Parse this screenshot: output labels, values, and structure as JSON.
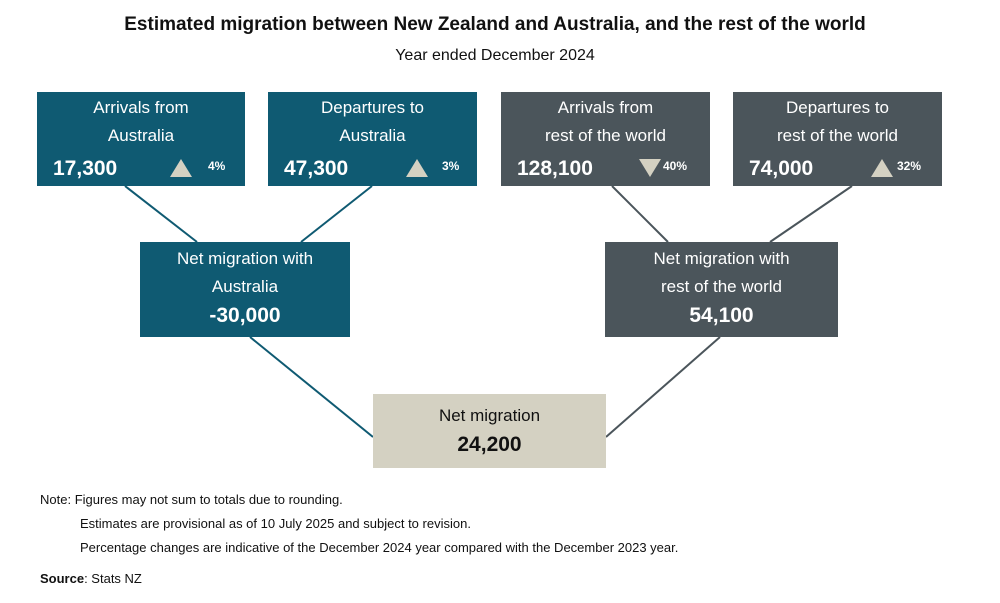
{
  "title": "Estimated migration between New Zealand and Australia, and the rest of the world",
  "subtitle": "Year ended December 2024",
  "boxes": {
    "arr_aus": {
      "line1": "Arrivals from",
      "line2": "Australia",
      "value": "17,300",
      "change": "4%",
      "direction": "up"
    },
    "dep_aus": {
      "line1": "Departures to",
      "line2": "Australia",
      "value": "47,300",
      "change": "3%",
      "direction": "up"
    },
    "arr_row": {
      "line1": "Arrivals from",
      "line2": "rest of the world",
      "value": "128,100",
      "change": "40%",
      "direction": "down"
    },
    "dep_row": {
      "line1": "Departures to",
      "line2": "rest of the world",
      "value": "74,000",
      "change": "32%",
      "direction": "up"
    },
    "net_aus": {
      "line1": "Net migration with",
      "line2": "Australia",
      "value": "-30,000"
    },
    "net_row": {
      "line1": "Net migration with",
      "line2": "rest of the world",
      "value": "54,100"
    },
    "net": {
      "line1": "Net migration",
      "value": "24,200"
    }
  },
  "notes": {
    "label": "Note:",
    "lines": [
      "Figures may not sum to totals due to rounding.",
      "Estimates are provisional as of 10 July 2025 and subject to revision.",
      "Percentage changes are indicative of the December 2024 year compared with the December 2023 year."
    ]
  },
  "source": {
    "label": "Source",
    "text": ": Stats NZ"
  },
  "colors": {
    "australia": "#0f5a72",
    "world": "#4b555b",
    "total": "#d4d1c2"
  }
}
